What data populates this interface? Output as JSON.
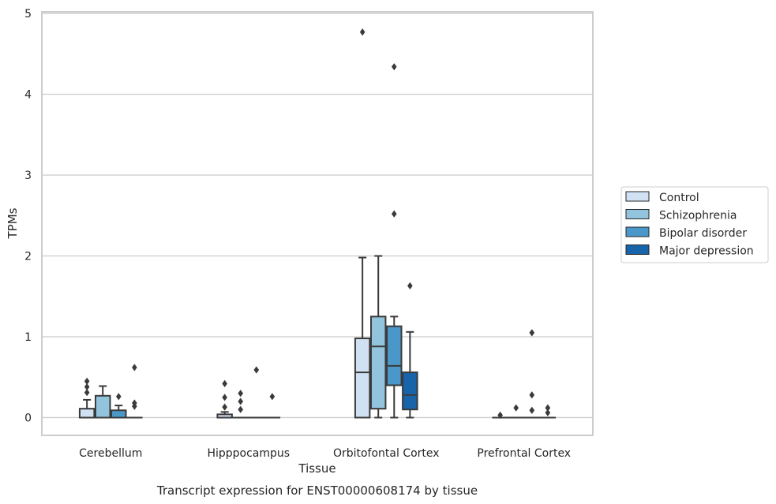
{
  "chart_data": {
    "type": "boxplot",
    "title": "",
    "xlabel": "Tissue",
    "ylabel": "TPMs",
    "caption": "Transcript expression for ENST00000608174 by tissue",
    "ylim": [
      -0.22,
      5.02
    ],
    "yticks": [
      0,
      1,
      2,
      3,
      4,
      5
    ],
    "grid": "horizontal",
    "legend_position": "right",
    "categories": [
      "Cerebellum",
      "Hipppocampus",
      "Orbitofontal Cortex",
      "Prefrontal Cortex"
    ],
    "series": [
      {
        "name": "Control",
        "color": "#cfe1f2",
        "boxes": [
          {
            "q1": 0,
            "median": 0,
            "q3": 0.11,
            "whisker_low": 0,
            "whisker_high": 0.22,
            "outliers": [
              0.31,
              0.38,
              0.45
            ]
          },
          {
            "q1": 0,
            "median": 0,
            "q3": 0.04,
            "whisker_low": 0,
            "whisker_high": 0.07,
            "outliers": [
              0.13,
              0.25,
              0.42
            ]
          },
          {
            "q1": 0,
            "median": 0.56,
            "q3": 0.98,
            "whisker_low": 0,
            "whisker_high": 1.98,
            "outliers": [
              4.77
            ]
          },
          {
            "q1": 0,
            "median": 0,
            "q3": 0,
            "whisker_low": 0,
            "whisker_high": 0,
            "outliers": [
              0.03
            ]
          }
        ]
      },
      {
        "name": "Schizophrenia",
        "color": "#93c4de",
        "boxes": [
          {
            "q1": 0,
            "median": 0,
            "q3": 0.27,
            "whisker_low": 0,
            "whisker_high": 0.39,
            "outliers": []
          },
          {
            "q1": 0,
            "median": 0,
            "q3": 0,
            "whisker_low": 0,
            "whisker_high": 0,
            "outliers": [
              0.1,
              0.2,
              0.3
            ]
          },
          {
            "q1": 0.11,
            "median": 0.88,
            "q3": 1.25,
            "whisker_low": 0,
            "whisker_high": 2.0,
            "outliers": []
          },
          {
            "q1": 0,
            "median": 0,
            "q3": 0,
            "whisker_low": 0,
            "whisker_high": 0,
            "outliers": [
              0.12
            ]
          }
        ]
      },
      {
        "name": "Bipolar disorder",
        "color": "#4a98c9",
        "boxes": [
          {
            "q1": 0,
            "median": 0,
            "q3": 0.09,
            "whisker_low": 0,
            "whisker_high": 0.15,
            "outliers": [
              0.26
            ]
          },
          {
            "q1": 0,
            "median": 0,
            "q3": 0,
            "whisker_low": 0,
            "whisker_high": 0,
            "outliers": [
              0.59
            ]
          },
          {
            "q1": 0.4,
            "median": 0.64,
            "q3": 1.13,
            "whisker_low": 0,
            "whisker_high": 1.25,
            "outliers": [
              2.52,
              4.34
            ]
          },
          {
            "q1": 0,
            "median": 0,
            "q3": 0,
            "whisker_low": 0,
            "whisker_high": 0,
            "outliers": [
              0.09,
              0.28,
              1.05
            ]
          }
        ]
      },
      {
        "name": "Major depression",
        "color": "#1764ab",
        "boxes": [
          {
            "q1": 0,
            "median": 0,
            "q3": 0,
            "whisker_low": 0,
            "whisker_high": 0,
            "outliers": [
              0.14,
              0.18,
              0.62
            ]
          },
          {
            "q1": 0,
            "median": 0,
            "q3": 0,
            "whisker_low": 0,
            "whisker_high": 0,
            "outliers": [
              0.26
            ]
          },
          {
            "q1": 0.1,
            "median": 0.28,
            "q3": 0.56,
            "whisker_low": 0,
            "whisker_high": 1.06,
            "outliers": [
              1.63
            ]
          },
          {
            "q1": 0,
            "median": 0,
            "q3": 0,
            "whisker_low": 0,
            "whisker_high": 0,
            "outliers": [
              0.06,
              0.12
            ]
          }
        ]
      }
    ]
  }
}
